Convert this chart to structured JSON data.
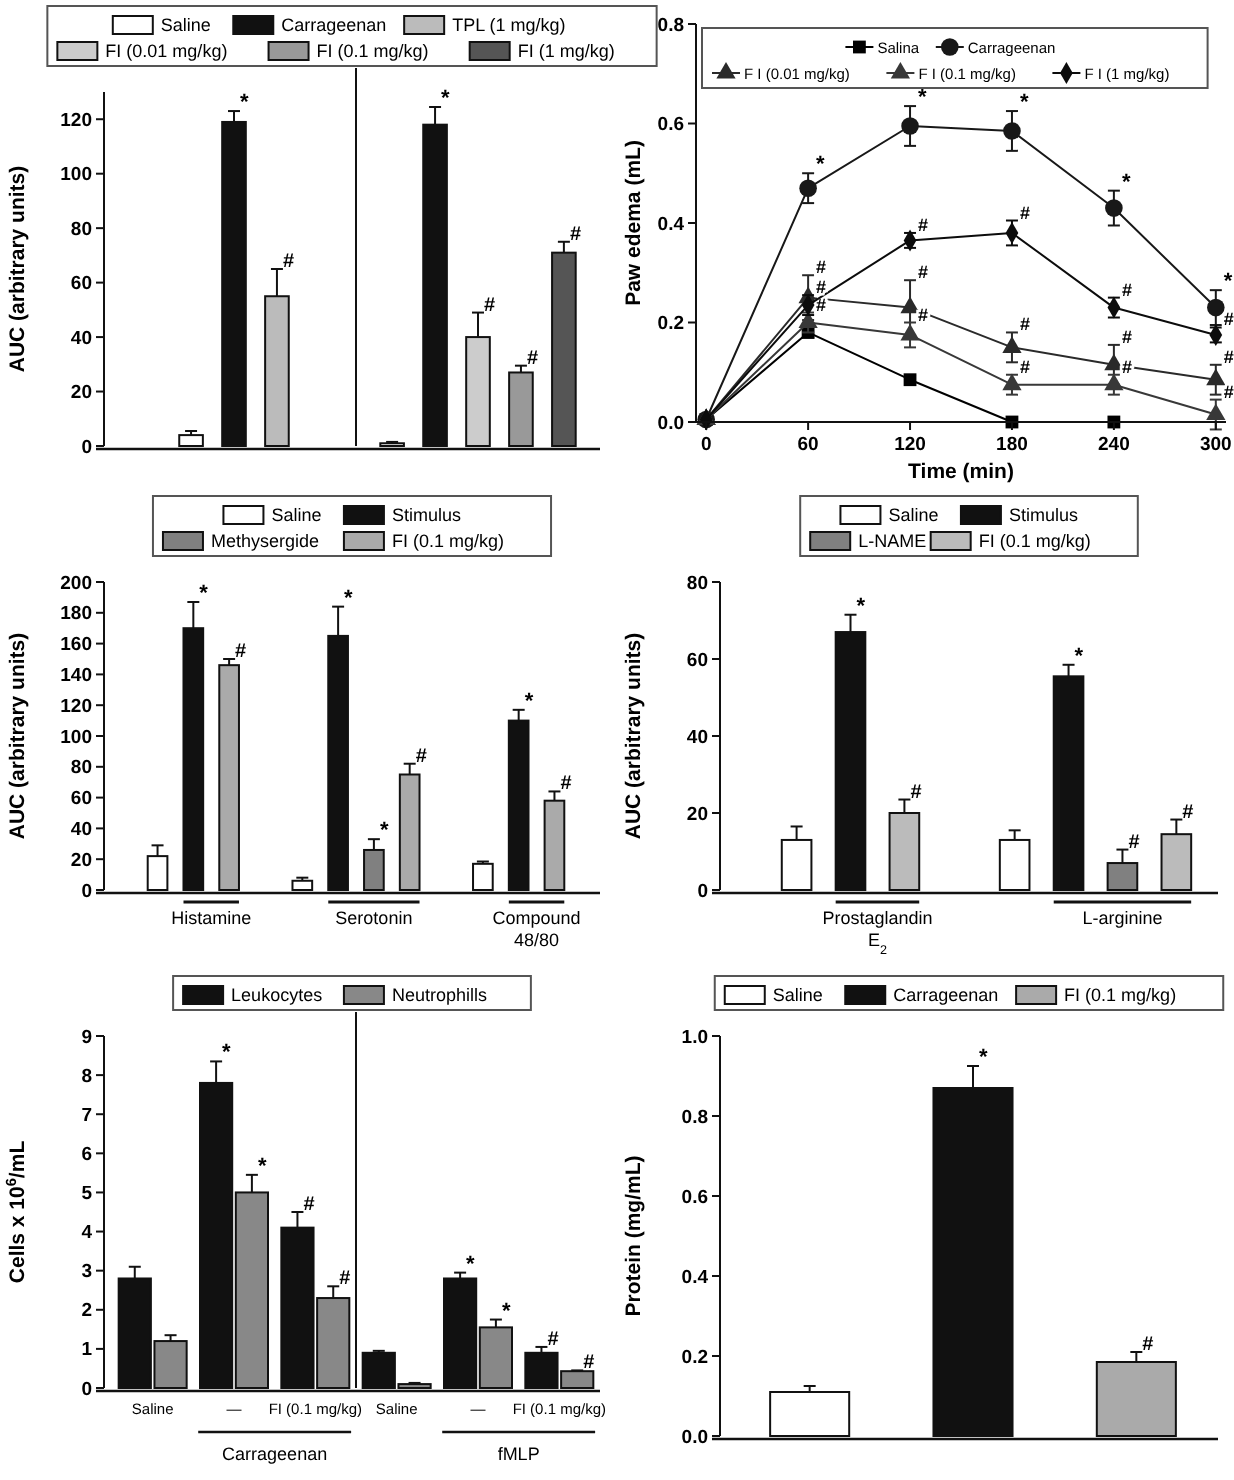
{
  "chart_data": [
    {
      "type": "bar",
      "ylabel": "AUC (arbitrary units)",
      "categories": [
        null,
        null
      ],
      "ylim": [
        0,
        130
      ],
      "yticks": [
        0,
        20,
        40,
        60,
        80,
        100,
        120
      ],
      "legend": "top",
      "series": [
        {
          "name": "Saline",
          "color": "#ffffff",
          "values": [
            4,
            1
          ],
          "errors": [
            1.5,
            0.5
          ],
          "value_labels": [
            null,
            null
          ]
        },
        {
          "name": "Carrageenan",
          "color": "#111111",
          "values": [
            119,
            118
          ],
          "errors": [
            4,
            6.5
          ],
          "value_labels": [
            "*",
            "*"
          ]
        },
        {
          "name": "TPL (1 mg/kg)",
          "color": "#bbbbbb",
          "values": [
            55,
            null
          ],
          "errors": [
            10,
            null
          ],
          "value_labels": [
            "#",
            null
          ]
        },
        {
          "name": "FI (0.01 mg/kg)",
          "color": "#cccccc",
          "values": [
            null,
            40
          ],
          "errors": [
            null,
            9
          ],
          "value_labels": [
            null,
            "#"
          ]
        },
        {
          "name": "FI (0.1 mg/kg)",
          "color": "#999999",
          "values": [
            null,
            27
          ],
          "errors": [
            null,
            2.5
          ],
          "value_labels": [
            null,
            "#"
          ]
        },
        {
          "name": "FI (1 mg/kg)",
          "color": "#555555",
          "values": [
            null,
            71
          ],
          "errors": [
            null,
            4
          ],
          "value_labels": [
            null,
            "#"
          ]
        }
      ]
    },
    {
      "type": "line",
      "xlabel": "Time (min)",
      "ylabel": "Paw edema (mL)",
      "x": [
        0,
        60,
        120,
        180,
        240,
        300
      ],
      "xlim": [
        -6,
        306
      ],
      "xticks": [
        0,
        60,
        120,
        180,
        240,
        300
      ],
      "ylim": [
        0,
        0.8
      ],
      "yticks": [
        {
          "value": 0,
          "label": "0.0"
        },
        {
          "value": 0.2,
          "label": "0.2"
        },
        {
          "value": 0.4,
          "label": "0.4"
        },
        {
          "value": 0.6,
          "label": "0.6"
        },
        {
          "value": 0.8,
          "label": "0.8"
        }
      ],
      "legend": "top",
      "series": [
        {
          "name": "Salina",
          "color": "#000000",
          "marker": "square",
          "values": [
            0.005,
            0.18,
            0.085,
            0,
            0,
            null
          ],
          "errors": [
            null,
            0.01,
            0.008,
            null,
            null,
            null
          ],
          "value_labels": [
            null,
            null,
            null,
            null,
            null,
            null
          ]
        },
        {
          "name": "Carrageenan",
          "color": "#181818",
          "marker": "circle",
          "values": [
            0.005,
            0.47,
            0.595,
            0.585,
            0.43,
            0.23
          ],
          "errors": [
            null,
            0.03,
            0.04,
            0.04,
            0.035,
            0.035
          ],
          "value_labels": [
            null,
            "*",
            "*",
            "*",
            "*",
            "*"
          ]
        },
        {
          "name": "F I (0.01 mg/kg)",
          "color": "#2a2a2a",
          "marker": "triangle",
          "values": [
            0.005,
            0.25,
            0.23,
            0.15,
            0.115,
            0.085
          ],
          "errors": [
            null,
            0.045,
            0.055,
            0.03,
            0.04,
            0.03
          ],
          "value_labels": [
            null,
            "#",
            "#",
            "#",
            "#",
            "#"
          ]
        },
        {
          "name": "F I (0.1 mg/kg)",
          "color": "#383838",
          "marker": "triangle",
          "values": [
            0.005,
            0.2,
            0.175,
            0.075,
            0.075,
            0.015
          ],
          "errors": [
            null,
            0.02,
            0.025,
            0.02,
            0.02,
            0.03
          ],
          "value_labels": [
            null,
            "#",
            "#",
            "#",
            "#",
            "#"
          ]
        },
        {
          "name": "F I (1 mg/kg)",
          "color": "#0c0c0c",
          "marker": "diamond",
          "values": [
            0.005,
            0.235,
            0.365,
            0.38,
            0.23,
            0.175
          ],
          "errors": [
            null,
            0.02,
            0.015,
            0.025,
            0.02,
            0.015
          ],
          "value_labels": [
            null,
            "#",
            "#",
            "#",
            "#",
            "#"
          ]
        }
      ]
    },
    {
      "type": "bar",
      "ylabel": "AUC (arbitrary units)",
      "categories": [
        "Histamine",
        "Serotonin",
        "Compound 48/80"
      ],
      "ylim": [
        0,
        200
      ],
      "yticks": [
        0,
        20,
        40,
        60,
        80,
        100,
        120,
        140,
        160,
        180,
        200
      ],
      "legend": "top",
      "series": [
        {
          "name": "Saline",
          "color": "#ffffff",
          "values": [
            22,
            6,
            17
          ],
          "errors": [
            7,
            2,
            1.5
          ],
          "value_labels": [
            null,
            null,
            null
          ]
        },
        {
          "name": "Stimulus",
          "color": "#111111",
          "values": [
            170,
            165,
            110
          ],
          "errors": [
            17,
            19,
            7
          ],
          "value_labels": [
            "*",
            "*",
            "*"
          ]
        },
        {
          "name": "Methysergide",
          "color": "#808080",
          "values": [
            null,
            26,
            null
          ],
          "errors": [
            null,
            7,
            null
          ],
          "value_labels": [
            null,
            "*",
            null
          ]
        },
        {
          "name": "FI (0.1 mg/kg)",
          "color": "#aaaaaa",
          "values": [
            146,
            75,
            58
          ],
          "errors": [
            4,
            7,
            6
          ],
          "value_labels": [
            "#",
            "#",
            "#"
          ]
        }
      ]
    },
    {
      "type": "bar",
      "ylabel": "AUC (arbitrary units)",
      "categories": [
        "Prostaglandin E$_{2}$",
        "L-arginine"
      ],
      "ylim": [
        0,
        80
      ],
      "yticks": [
        0,
        20,
        40,
        60,
        80
      ],
      "legend": "top",
      "series": [
        {
          "name": "Saline",
          "color": "#ffffff",
          "values": [
            13,
            13
          ],
          "errors": [
            3.5,
            2.5
          ],
          "value_labels": [
            null,
            null
          ]
        },
        {
          "name": "Stimulus",
          "color": "#111111",
          "values": [
            67,
            55.5
          ],
          "errors": [
            4.5,
            3
          ],
          "value_labels": [
            "*",
            "*"
          ]
        },
        {
          "name": "L-NAME",
          "color": "#808080",
          "values": [
            null,
            7
          ],
          "errors": [
            null,
            3.5
          ],
          "value_labels": [
            null,
            "#"
          ]
        },
        {
          "name": "FI (0.1 mg/kg)",
          "color": "#bbbbbb",
          "values": [
            20,
            14.5
          ],
          "errors": [
            3.5,
            3.8
          ],
          "value_labels": [
            "#",
            "#"
          ]
        }
      ]
    },
    {
      "type": "bar",
      "ylabel": "Cells x 10$^{6}$/mL",
      "categories": [
        "Saline",
        "—",
        "FI (0.1 mg/kg)",
        "Saline",
        "—",
        "FI (0.1 mg/kg)"
      ],
      "annotations": [
        "Carrageenan",
        "fMLP"
      ],
      "ylim": [
        0,
        9
      ],
      "yticks": [
        0,
        1,
        2,
        3,
        4,
        5,
        6,
        7,
        8,
        9
      ],
      "legend": "top",
      "series": [
        {
          "name": "Leukocytes",
          "color": "#111111",
          "values": [
            2.8,
            7.8,
            4.1,
            0.9,
            2.8,
            0.9
          ],
          "errors": [
            0.3,
            0.55,
            0.4,
            0.05,
            0.15,
            0.15
          ],
          "value_labels": [
            null,
            "*",
            "#",
            null,
            "*",
            "#"
          ]
        },
        {
          "name": "Neutrophills",
          "color": "#888888",
          "values": [
            1.2,
            5.0,
            2.3,
            0.1,
            1.55,
            0.43
          ],
          "errors": [
            0.15,
            0.45,
            0.3,
            0.03,
            0.2,
            0.02
          ],
          "value_labels": [
            null,
            "*",
            "#",
            null,
            "*",
            "#"
          ]
        }
      ]
    },
    {
      "type": "bar",
      "ylabel": "Protein (mg/mL)",
      "categories": [
        null,
        null,
        null
      ],
      "ylim": [
        0,
        1
      ],
      "yticks": [
        {
          "value": 0,
          "label": "0.0"
        },
        {
          "value": 0.2,
          "label": "0.2"
        },
        {
          "value": 0.4,
          "label": "0.4"
        },
        {
          "value": 0.6,
          "label": "0.6"
        },
        {
          "value": 0.8,
          "label": "0.8"
        },
        {
          "value": 1,
          "label": "1.0"
        }
      ],
      "legend": "top",
      "series": [
        {
          "name": "Saline",
          "color": "#ffffff",
          "values": [
            0.11,
            null,
            null
          ],
          "errors": [
            0.015,
            null,
            null
          ],
          "value_labels": [
            null,
            null,
            null
          ]
        },
        {
          "name": "Carrageenan",
          "color": "#111111",
          "values": [
            null,
            0.87,
            null
          ],
          "errors": [
            null,
            0.055,
            null
          ],
          "value_labels": [
            null,
            "*",
            null
          ]
        },
        {
          "name": "FI (0.1 mg/kg)",
          "color": "#aaaaaa",
          "values": [
            null,
            null,
            0.185
          ],
          "errors": [
            null,
            null,
            0.025
          ],
          "value_labels": [
            null,
            null,
            "#"
          ]
        }
      ]
    }
  ]
}
